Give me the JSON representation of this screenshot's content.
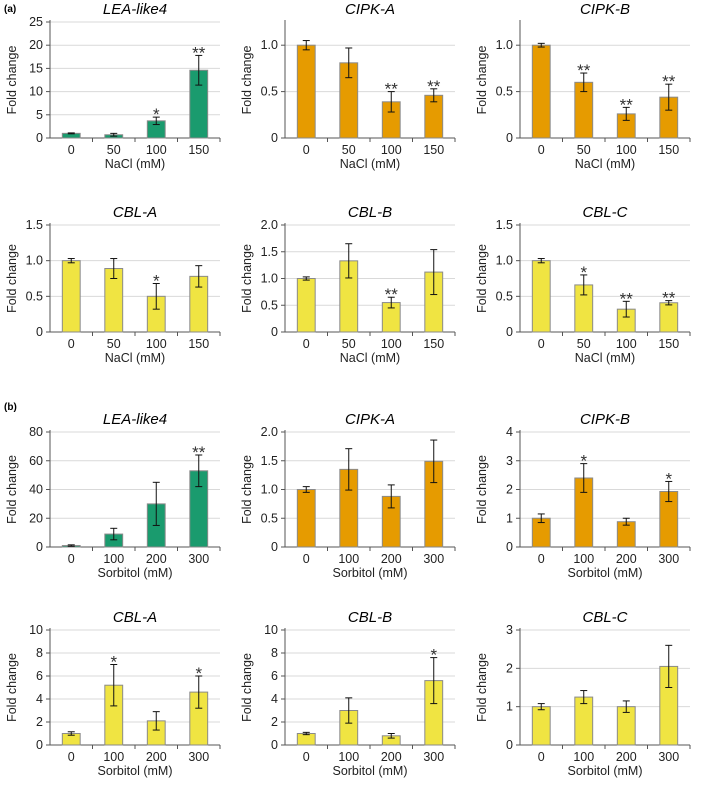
{
  "panel_labels": [
    "(a)",
    "(b)"
  ],
  "colors": {
    "green": "#1a9b6e",
    "orange": "#e69b00",
    "yellow": "#f0e442"
  },
  "chart_data": [
    {
      "type": "bar",
      "title": "LEA-like4",
      "xlabel": "NaCl (mM)",
      "ylabel": "Fold change",
      "categories": [
        "0",
        "50",
        "100",
        "150"
      ],
      "values": [
        1,
        0.7,
        3.7,
        14.6
      ],
      "errors": [
        0.1,
        0.3,
        0.8,
        3.2
      ],
      "significance": [
        "",
        "",
        "*",
        "**"
      ],
      "ylim": [
        0,
        25
      ],
      "yticks": [
        "0",
        "5",
        "10",
        "15",
        "20",
        "25"
      ],
      "color": "#1a9b6e",
      "grid": true
    },
    {
      "type": "bar",
      "title": "CIPK-A",
      "xlabel": "NaCl (mM)",
      "ylabel": "Fold change",
      "categories": [
        "0",
        "50",
        "100",
        "150"
      ],
      "values": [
        1.0,
        0.81,
        0.39,
        0.46
      ],
      "errors": [
        0.05,
        0.16,
        0.11,
        0.07
      ],
      "significance": [
        "",
        "",
        "**",
        "**"
      ],
      "ylim": [
        0,
        1.25
      ],
      "yticks": [
        "0",
        "0.5",
        "1.0"
      ],
      "color": "#e69b00",
      "grid": true
    },
    {
      "type": "bar",
      "title": "CIPK-B",
      "xlabel": "NaCl (mM)",
      "ylabel": "Fold change",
      "categories": [
        "0",
        "50",
        "100",
        "150"
      ],
      "values": [
        1.0,
        0.6,
        0.26,
        0.44
      ],
      "errors": [
        0.02,
        0.1,
        0.07,
        0.14
      ],
      "significance": [
        "",
        "**",
        "**",
        "**"
      ],
      "ylim": [
        0,
        1.25
      ],
      "yticks": [
        "0",
        "0.5",
        "1.0"
      ],
      "color": "#e69b00",
      "grid": true
    },
    {
      "type": "bar",
      "title": "CBL-A",
      "xlabel": "NaCl (mM)",
      "ylabel": "Fold change",
      "categories": [
        "0",
        "50",
        "100",
        "150"
      ],
      "values": [
        1.0,
        0.89,
        0.5,
        0.78
      ],
      "errors": [
        0.03,
        0.14,
        0.18,
        0.15
      ],
      "significance": [
        "",
        "",
        "*",
        ""
      ],
      "ylim": [
        0,
        1.5
      ],
      "yticks": [
        "0",
        "0.5",
        "1.0",
        "1.5"
      ],
      "color": "#f0e442",
      "grid": true
    },
    {
      "type": "bar",
      "title": "CBL-B",
      "xlabel": "NaCl (mM)",
      "ylabel": "Fold change",
      "categories": [
        "0",
        "50",
        "100",
        "150"
      ],
      "values": [
        1.0,
        1.33,
        0.55,
        1.12
      ],
      "errors": [
        0.03,
        0.32,
        0.1,
        0.42
      ],
      "significance": [
        "",
        "",
        "**",
        ""
      ],
      "ylim": [
        0,
        2.0
      ],
      "yticks": [
        "0",
        "0.5",
        "1.0",
        "1.5",
        "2.0"
      ],
      "color": "#f0e442",
      "grid": true
    },
    {
      "type": "bar",
      "title": "CBL-C",
      "xlabel": "NaCl (mM)",
      "ylabel": "Fold change",
      "categories": [
        "0",
        "50",
        "100",
        "150"
      ],
      "values": [
        1.0,
        0.66,
        0.32,
        0.41
      ],
      "errors": [
        0.03,
        0.14,
        0.11,
        0.03
      ],
      "significance": [
        "",
        "*",
        "**",
        "**"
      ],
      "ylim": [
        0,
        1.5
      ],
      "yticks": [
        "0",
        "0.5",
        "1.0",
        "1.5"
      ],
      "color": "#f0e442",
      "grid": true
    },
    {
      "type": "bar",
      "title": "LEA-like4",
      "xlabel": "Sorbitol (mM)",
      "ylabel": "Fold change",
      "categories": [
        "0",
        "100",
        "200",
        "300"
      ],
      "values": [
        1,
        9,
        30,
        53
      ],
      "errors": [
        0.5,
        4,
        15,
        11
      ],
      "significance": [
        "",
        "",
        "",
        "**"
      ],
      "ylim": [
        0,
        80
      ],
      "yticks": [
        "0",
        "20",
        "40",
        "60",
        "80"
      ],
      "color": "#1a9b6e",
      "grid": true
    },
    {
      "type": "bar",
      "title": "CIPK-A",
      "xlabel": "Sorbitol (mM)",
      "ylabel": "Fold change",
      "categories": [
        "0",
        "100",
        "200",
        "300"
      ],
      "values": [
        1.0,
        1.35,
        0.88,
        1.49
      ],
      "errors": [
        0.05,
        0.36,
        0.2,
        0.37
      ],
      "significance": [
        "",
        "",
        "",
        ""
      ],
      "ylim": [
        0,
        2.0
      ],
      "yticks": [
        "0",
        "0.5",
        "1.0",
        "1.5",
        "2.0"
      ],
      "color": "#e69b00",
      "grid": true
    },
    {
      "type": "bar",
      "title": "CIPK-B",
      "xlabel": "Sorbitol (mM)",
      "ylabel": "Fold change",
      "categories": [
        "0",
        "100",
        "200",
        "300"
      ],
      "values": [
        1.0,
        2.4,
        0.88,
        1.93
      ],
      "errors": [
        0.15,
        0.5,
        0.12,
        0.35
      ],
      "significance": [
        "",
        "*",
        "",
        "*"
      ],
      "ylim": [
        0,
        4
      ],
      "yticks": [
        "0",
        "1",
        "2",
        "3",
        "4"
      ],
      "color": "#e69b00",
      "grid": true
    },
    {
      "type": "bar",
      "title": "CBL-A",
      "xlabel": "Sorbitol (mM)",
      "ylabel": "Fold change",
      "categories": [
        "0",
        "100",
        "200",
        "300"
      ],
      "values": [
        1,
        5.2,
        2.1,
        4.6
      ],
      "errors": [
        0.15,
        1.8,
        0.8,
        1.4
      ],
      "significance": [
        "",
        "*",
        "",
        "*"
      ],
      "ylim": [
        0,
        10
      ],
      "yticks": [
        "0",
        "2",
        "4",
        "6",
        "8",
        "10"
      ],
      "color": "#f0e442",
      "grid": true
    },
    {
      "type": "bar",
      "title": "CBL-B",
      "xlabel": "Sorbitol (mM)",
      "ylabel": "Fold change",
      "categories": [
        "0",
        "100",
        "200",
        "300"
      ],
      "values": [
        1,
        3.0,
        0.8,
        5.6
      ],
      "errors": [
        0.1,
        1.1,
        0.2,
        2.0
      ],
      "significance": [
        "",
        "",
        "",
        "*"
      ],
      "ylim": [
        0,
        10
      ],
      "yticks": [
        "0",
        "2",
        "4",
        "6",
        "8",
        "10"
      ],
      "color": "#f0e442",
      "grid": true
    },
    {
      "type": "bar",
      "title": "CBL-C",
      "xlabel": "Sorbitol (mM)",
      "ylabel": "Fold change",
      "categories": [
        "0",
        "100",
        "200",
        "300"
      ],
      "values": [
        1,
        1.25,
        1.0,
        2.05
      ],
      "errors": [
        0.08,
        0.17,
        0.15,
        0.55
      ],
      "significance": [
        "",
        "",
        "",
        ""
      ],
      "ylim": [
        0,
        3
      ],
      "yticks": [
        "0",
        "1",
        "2",
        "3"
      ],
      "color": "#f0e442",
      "grid": true
    }
  ]
}
